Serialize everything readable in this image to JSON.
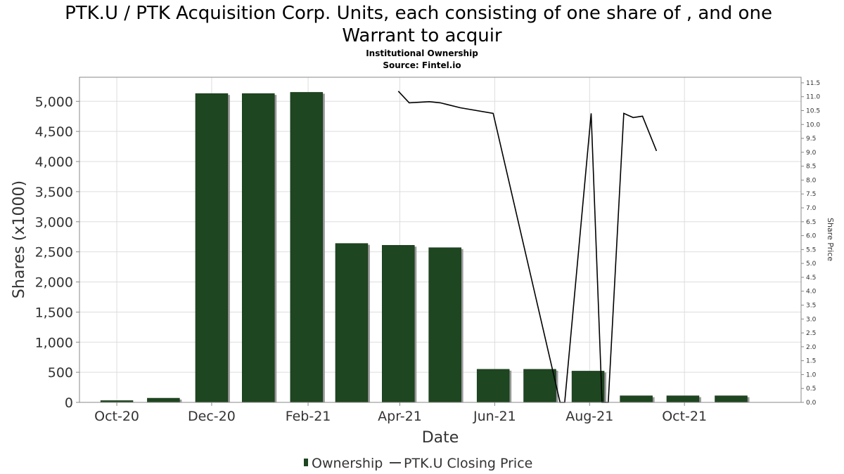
{
  "chart_data": {
    "type": "bar",
    "title_line1": "PTK.U / PTK Acquisition Corp. Units, each consisting of one share of , and one",
    "title_line2": "Warrant to acquir",
    "subtitle1": "Institutional Ownership",
    "subtitle2": "Source: Fintel.io",
    "xlabel": "Date",
    "ylabel": "Shares (x1000)",
    "y2label": "Share Price",
    "ylim": [
      0,
      5400
    ],
    "y2lim": [
      0,
      11.7
    ],
    "xlim": [
      "2020-09-07",
      "2021-12-15"
    ],
    "x_ticks": [
      {
        "label": "Oct-20",
        "date": "2020-10-01"
      },
      {
        "label": "Dec-20",
        "date": "2020-12-01"
      },
      {
        "label": "Feb-21",
        "date": "2021-02-01"
      },
      {
        "label": "Apr-21",
        "date": "2021-04-01"
      },
      {
        "label": "Jun-21",
        "date": "2021-06-01"
      },
      {
        "label": "Aug-21",
        "date": "2021-08-01"
      },
      {
        "label": "Oct-21",
        "date": "2021-10-01"
      }
    ],
    "y_ticks": [
      {
        "label": "0",
        "value": 0
      },
      {
        "label": "500",
        "value": 500
      },
      {
        "label": "1,000",
        "value": 1000
      },
      {
        "label": "1,500",
        "value": 1500
      },
      {
        "label": "2,000",
        "value": 2000
      },
      {
        "label": "2,500",
        "value": 2500
      },
      {
        "label": "3,000",
        "value": 3000
      },
      {
        "label": "3,500",
        "value": 3500
      },
      {
        "label": "4,000",
        "value": 4000
      },
      {
        "label": "4,500",
        "value": 4500
      },
      {
        "label": "5,000",
        "value": 5000
      }
    ],
    "y2_ticks": [
      "0.0",
      "0.5",
      "1.0",
      "1.5",
      "2.0",
      "2.5",
      "3.0",
      "3.5",
      "4.0",
      "4.5",
      "5.0",
      "5.5",
      "6.0",
      "6.5",
      "7.0",
      "7.5",
      "8.0",
      "8.5",
      "9.0",
      "9.5",
      "10.0",
      "10.5",
      "11.0",
      "11.5"
    ],
    "series": [
      {
        "name": "Ownership",
        "type": "bar",
        "color": "#1e4620",
        "data": [
          {
            "date": "2020-10-01",
            "value": 30
          },
          {
            "date": "2020-10-31",
            "value": 70
          },
          {
            "date": "2020-12-01",
            "value": 5130
          },
          {
            "date": "2020-12-31",
            "value": 5130
          },
          {
            "date": "2021-01-31",
            "value": 5150
          },
          {
            "date": "2021-03-01",
            "value": 2640
          },
          {
            "date": "2021-03-31",
            "value": 2610
          },
          {
            "date": "2021-04-30",
            "value": 2570
          },
          {
            "date": "2021-05-31",
            "value": 550
          },
          {
            "date": "2021-06-30",
            "value": 550
          },
          {
            "date": "2021-07-31",
            "value": 520
          },
          {
            "date": "2021-08-31",
            "value": 110
          },
          {
            "date": "2021-09-30",
            "value": 110
          },
          {
            "date": "2021-10-31",
            "value": 110
          }
        ]
      },
      {
        "name": "PTK.U Closing Price",
        "type": "line",
        "color": "#000000",
        "data": [
          {
            "date": "2021-03-31",
            "value": 11.2
          },
          {
            "date": "2021-04-07",
            "value": 10.78
          },
          {
            "date": "2021-04-20",
            "value": 10.82
          },
          {
            "date": "2021-04-27",
            "value": 10.78
          },
          {
            "date": "2021-05-10",
            "value": 10.6
          },
          {
            "date": "2021-05-31",
            "value": 10.4
          },
          {
            "date": "2021-07-13",
            "value": 0.0
          },
          {
            "date": "2021-07-16",
            "value": 0.0
          },
          {
            "date": "2021-08-02",
            "value": 10.4
          },
          {
            "date": "2021-08-09",
            "value": 0.0
          },
          {
            "date": "2021-08-13",
            "value": 0.0
          },
          {
            "date": "2021-08-23",
            "value": 10.4
          },
          {
            "date": "2021-08-29",
            "value": 10.25
          },
          {
            "date": "2021-09-04",
            "value": 10.3
          },
          {
            "date": "2021-09-13",
            "value": 9.05
          }
        ]
      }
    ],
    "legend_position": "bottom",
    "grid": true
  }
}
